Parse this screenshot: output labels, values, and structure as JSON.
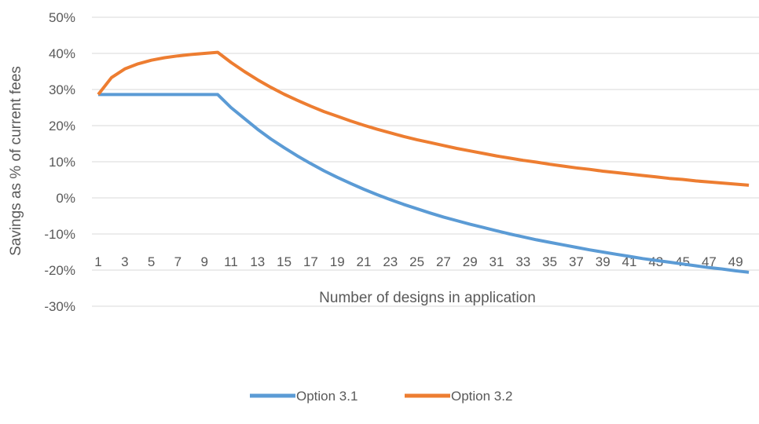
{
  "chart_data": {
    "type": "line",
    "title": "",
    "xlabel": "Number of designs in application",
    "ylabel": "Savings as % of current fees",
    "x": [
      1,
      2,
      3,
      4,
      5,
      6,
      7,
      8,
      9,
      10,
      11,
      12,
      13,
      14,
      15,
      16,
      17,
      18,
      19,
      20,
      21,
      22,
      23,
      24,
      25,
      26,
      27,
      28,
      29,
      30,
      31,
      32,
      33,
      34,
      35,
      36,
      37,
      38,
      39,
      40,
      41,
      42,
      43,
      44,
      45,
      46,
      47,
      48,
      49,
      50
    ],
    "x_tick_labels": [
      "1",
      "3",
      "5",
      "7",
      "9",
      "11",
      "13",
      "15",
      "17",
      "19",
      "21",
      "23",
      "25",
      "27",
      "29",
      "31",
      "33",
      "35",
      "37",
      "39",
      "41",
      "43",
      "45",
      "47",
      "49"
    ],
    "ylim": [
      -0.3,
      0.5
    ],
    "y_ticks": [
      -0.3,
      -0.2,
      -0.1,
      0,
      0.1,
      0.2,
      0.3,
      0.4,
      0.5
    ],
    "y_tick_labels": [
      "-30%",
      "-20%",
      "-10%",
      "0%",
      "10%",
      "20%",
      "30%",
      "40%",
      "50%"
    ],
    "grid": true,
    "legend_position": "bottom",
    "series": [
      {
        "name": "Option 3.1",
        "color": "#5b9bd5",
        "values": [
          0.286,
          0.286,
          0.286,
          0.286,
          0.286,
          0.286,
          0.286,
          0.286,
          0.286,
          0.286,
          0.25,
          0.22,
          0.19,
          0.163,
          0.139,
          0.116,
          0.095,
          0.075,
          0.057,
          0.04,
          0.024,
          0.009,
          -0.005,
          -0.018,
          -0.03,
          -0.042,
          -0.053,
          -0.063,
          -0.073,
          -0.082,
          -0.091,
          -0.1,
          -0.108,
          -0.116,
          -0.123,
          -0.13,
          -0.137,
          -0.144,
          -0.15,
          -0.156,
          -0.162,
          -0.168,
          -0.173,
          -0.178,
          -0.183,
          -0.188,
          -0.193,
          -0.197,
          -0.202,
          -0.206
        ]
      },
      {
        "name": "Option 3.2",
        "color": "#ed7d31",
        "values": [
          0.286,
          0.333,
          0.357,
          0.371,
          0.381,
          0.388,
          0.393,
          0.397,
          0.4,
          0.403,
          0.375,
          0.35,
          0.327,
          0.306,
          0.287,
          0.27,
          0.254,
          0.239,
          0.226,
          0.213,
          0.201,
          0.19,
          0.18,
          0.17,
          0.161,
          0.153,
          0.145,
          0.137,
          0.13,
          0.123,
          0.116,
          0.11,
          0.104,
          0.099,
          0.093,
          0.088,
          0.083,
          0.079,
          0.074,
          0.07,
          0.066,
          0.062,
          0.058,
          0.054,
          0.051,
          0.047,
          0.044,
          0.041,
          0.038,
          0.035
        ]
      }
    ]
  }
}
